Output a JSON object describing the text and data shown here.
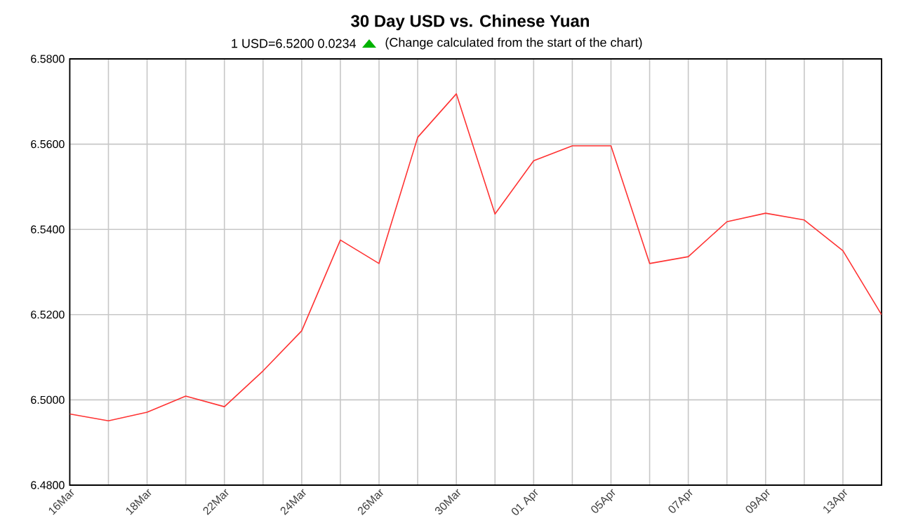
{
  "chart_data": {
    "type": "line",
    "title": "30 Day USD vs. Chinese Yuan",
    "subtitle": "1 USD=6.5200  0.0234",
    "annotations": [
      "(Change calculated from the start of the chart)"
    ],
    "categories": [
      "16Mar",
      null,
      "18Mar",
      null,
      "22Mar",
      null,
      "24Mar",
      null,
      "26Mar",
      null,
      "30Mar",
      null,
      "01 Apr",
      null,
      "05Apr",
      null,
      "07Apr",
      null,
      "09Apr",
      null,
      "13Apr",
      null
    ],
    "values": [
      6.4967,
      6.4951,
      6.4971,
      6.5009,
      6.4984,
      6.5068,
      6.5162,
      6.5375,
      6.532,
      6.5616,
      6.5718,
      6.5436,
      6.5561,
      6.5596,
      6.5596,
      6.532,
      6.5336,
      6.5418,
      6.5438,
      6.5422,
      6.535,
      6.52
    ],
    "color": "#ff3333",
    "ylim": [
      6.48,
      6.58
    ],
    "yticks": [
      {
        "value": 6.48,
        "label": "6.4800"
      },
      {
        "value": 6.5,
        "label": "6.5000"
      },
      {
        "value": 6.52,
        "label": "6.5200"
      },
      {
        "value": 6.54,
        "label": "6.5400"
      },
      {
        "value": 6.56,
        "label": "6.5600"
      },
      {
        "value": 6.58,
        "label": "6.5800"
      }
    ],
    "grid": true,
    "marker": "none",
    "line_style": "solid"
  }
}
